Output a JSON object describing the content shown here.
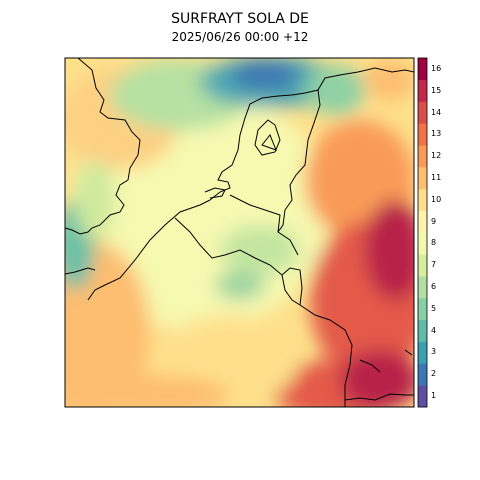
{
  "title": "SURFRAYT SOLA DE",
  "subtitle": "2025/06/26 00:00 +12",
  "legend": {
    "ticks": [
      "1",
      "2",
      "3",
      "4",
      "5",
      "6",
      "7",
      "8",
      "9",
      "10",
      "11",
      "12",
      "13",
      "14",
      "15",
      "16"
    ],
    "colors": [
      "#5e4fa2",
      "#3e78b3",
      "#3ba0b4",
      "#5fbaa7",
      "#87cfa4",
      "#b2e0a2",
      "#d7ef9b",
      "#f2f9ae",
      "#fff3ac",
      "#fedd8c",
      "#fdbe6f",
      "#f99b58",
      "#f07245",
      "#db4f4a",
      "#c02b4a",
      "#9e0142"
    ]
  },
  "colors": {
    "background": "#ffffff",
    "frame": "#000000",
    "coastline": "#000000"
  }
}
